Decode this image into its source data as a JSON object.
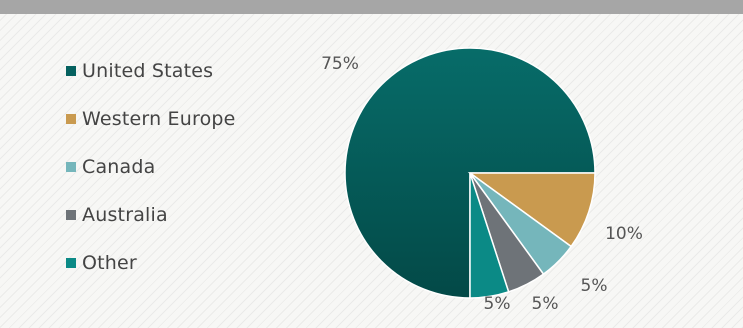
{
  "chart_data": {
    "type": "pie",
    "title": "",
    "categories": [
      "United States",
      "Western Europe",
      "Canada",
      "Australia",
      "Other"
    ],
    "values": [
      75,
      10,
      5,
      5,
      5
    ],
    "data_labels": [
      "75%",
      "10%",
      "5%",
      "5%",
      "5%"
    ],
    "colors": [
      "#05615f",
      "#c99a4f",
      "#75b6bb",
      "#6e7378",
      "#0b8a86"
    ],
    "legend": "left",
    "grid": false
  }
}
